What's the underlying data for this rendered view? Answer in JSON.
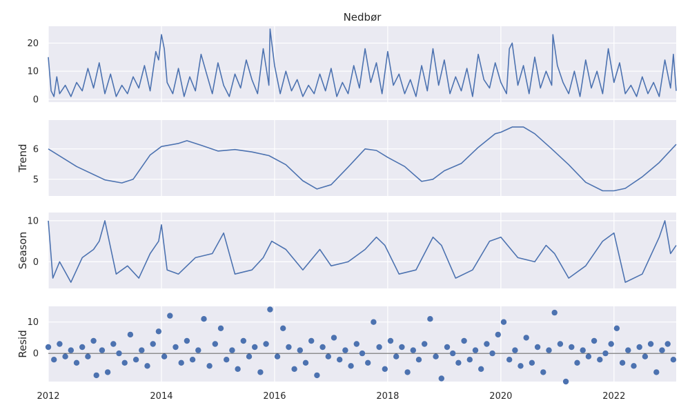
{
  "chart_data": {
    "type": "line",
    "title": "Nedbør",
    "x_tick_labels": [
      "2012",
      "2014",
      "2016",
      "2018",
      "2020",
      "2022"
    ],
    "x_range": [
      2012.0,
      2023.1
    ],
    "panels": [
      {
        "id": "observed",
        "ylabel": "",
        "style": "line",
        "ylim": [
          -1,
          26
        ],
        "yticks": [
          0,
          10,
          20
        ],
        "series": {
          "x": [
            2012.0,
            2012.05,
            2012.1,
            2012.15,
            2012.2,
            2012.3,
            2012.4,
            2012.5,
            2012.6,
            2012.7,
            2012.8,
            2012.9,
            2013.0,
            2013.1,
            2013.2,
            2013.3,
            2013.4,
            2013.5,
            2013.6,
            2013.7,
            2013.8,
            2013.9,
            2013.95,
            2014.0,
            2014.05,
            2014.1,
            2014.2,
            2014.3,
            2014.4,
            2014.5,
            2014.6,
            2014.7,
            2014.8,
            2014.9,
            2015.0,
            2015.1,
            2015.2,
            2015.3,
            2015.4,
            2015.5,
            2015.6,
            2015.7,
            2015.8,
            2015.9,
            2015.92,
            2016.0,
            2016.1,
            2016.2,
            2016.3,
            2016.4,
            2016.5,
            2016.6,
            2016.7,
            2016.8,
            2016.9,
            2017.0,
            2017.1,
            2017.2,
            2017.3,
            2017.4,
            2017.5,
            2017.6,
            2017.7,
            2017.8,
            2017.9,
            2018.0,
            2018.1,
            2018.2,
            2018.3,
            2018.4,
            2018.5,
            2018.6,
            2018.7,
            2018.8,
            2018.9,
            2019.0,
            2019.1,
            2019.2,
            2019.3,
            2019.4,
            2019.5,
            2019.6,
            2019.7,
            2019.8,
            2019.9,
            2020.0,
            2020.1,
            2020.15,
            2020.2,
            2020.3,
            2020.4,
            2020.5,
            2020.6,
            2020.7,
            2020.8,
            2020.9,
            2020.92,
            2021.0,
            2021.1,
            2021.2,
            2021.3,
            2021.4,
            2021.5,
            2021.6,
            2021.7,
            2021.8,
            2021.9,
            2022.0,
            2022.1,
            2022.2,
            2022.3,
            2022.4,
            2022.5,
            2022.6,
            2022.7,
            2022.8,
            2022.9,
            2023.0,
            2023.05,
            2023.1
          ],
          "y": [
            15,
            3,
            1,
            8,
            2,
            5,
            1,
            6,
            3,
            11,
            4,
            13,
            2,
            9,
            1,
            5,
            2,
            8,
            4,
            12,
            3,
            17,
            14,
            23,
            18,
            6,
            2,
            11,
            1,
            8,
            3,
            16,
            9,
            2,
            13,
            5,
            1,
            9,
            4,
            14,
            7,
            2,
            18,
            5,
            25,
            12,
            2,
            10,
            3,
            7,
            1,
            5,
            2,
            9,
            3,
            11,
            1,
            6,
            2,
            12,
            4,
            18,
            6,
            13,
            2,
            17,
            5,
            9,
            2,
            7,
            1,
            12,
            3,
            18,
            5,
            14,
            2,
            8,
            3,
            11,
            1,
            16,
            7,
            4,
            13,
            6,
            2,
            18,
            20,
            5,
            12,
            2,
            15,
            4,
            10,
            5,
            23,
            12,
            6,
            2,
            10,
            1,
            14,
            4,
            10,
            2,
            18,
            6,
            13,
            2,
            5,
            1,
            8,
            2,
            6,
            1,
            14,
            4,
            16,
            3
          ]
        }
      },
      {
        "id": "trend",
        "ylabel": "Trend",
        "style": "line",
        "ylim": [
          4.45,
          6.95
        ],
        "yticks": [
          5,
          6
        ],
        "series": {
          "x": [
            2012.0,
            2012.5,
            2013.0,
            2013.3,
            2013.5,
            2013.8,
            2014.0,
            2014.3,
            2014.45,
            2014.7,
            2015.0,
            2015.3,
            2015.6,
            2015.9,
            2016.2,
            2016.5,
            2016.75,
            2017.0,
            2017.3,
            2017.6,
            2017.8,
            2018.0,
            2018.3,
            2018.6,
            2018.8,
            2019.0,
            2019.3,
            2019.6,
            2019.9,
            2020.0,
            2020.2,
            2020.4,
            2020.6,
            2020.9,
            2021.2,
            2021.5,
            2021.8,
            2022.0,
            2022.2,
            2022.5,
            2022.8,
            2023.1
          ],
          "y": [
            6.0,
            5.42,
            4.98,
            4.88,
            5.0,
            5.8,
            6.08,
            6.18,
            6.27,
            6.12,
            5.93,
            5.98,
            5.9,
            5.78,
            5.48,
            4.95,
            4.68,
            4.82,
            5.4,
            6.0,
            5.95,
            5.72,
            5.42,
            4.93,
            5.0,
            5.28,
            5.52,
            6.05,
            6.5,
            6.55,
            6.72,
            6.72,
            6.5,
            6.0,
            5.48,
            4.9,
            4.62,
            4.62,
            4.7,
            5.08,
            5.55,
            6.15
          ]
        }
      },
      {
        "id": "season",
        "ylabel": "Season",
        "style": "line",
        "ylim": [
          -6.5,
          12
        ],
        "yticks": [
          0,
          10
        ],
        "series": {
          "x": [
            2012.0,
            2012.08,
            2012.2,
            2012.4,
            2012.6,
            2012.8,
            2012.9,
            2013.0,
            2013.2,
            2013.4,
            2013.6,
            2013.8,
            2013.95,
            2014.0,
            2014.1,
            2014.3,
            2014.6,
            2014.9,
            2015.1,
            2015.3,
            2015.6,
            2015.8,
            2015.95,
            2016.2,
            2016.5,
            2016.8,
            2017.0,
            2017.3,
            2017.6,
            2017.8,
            2017.95,
            2018.2,
            2018.5,
            2018.8,
            2018.95,
            2019.2,
            2019.5,
            2019.8,
            2020.0,
            2020.3,
            2020.6,
            2020.8,
            2020.95,
            2021.2,
            2021.5,
            2021.8,
            2022.0,
            2022.2,
            2022.5,
            2022.8,
            2022.9,
            2023.0,
            2023.1
          ],
          "y": [
            10,
            -4,
            0,
            -5,
            1,
            3,
            5,
            10,
            -3,
            -1,
            -4,
            2,
            5,
            9,
            -2,
            -3,
            1,
            2,
            7,
            -3,
            -2,
            1,
            5,
            3,
            -2,
            3,
            -1,
            0,
            3,
            6,
            4,
            -3,
            -2,
            6,
            4,
            -4,
            -2,
            5,
            6,
            1,
            0,
            4,
            2,
            -4,
            -1,
            5,
            7,
            -5,
            -3,
            6,
            10,
            2,
            4
          ]
        }
      },
      {
        "id": "resid",
        "ylabel": "Resid",
        "style": "scatter",
        "ylim": [
          -9,
          15
        ],
        "yticks": [
          0,
          10
        ],
        "zero_line": true,
        "series": {
          "x": [
            2012.0,
            2012.1,
            2012.2,
            2012.3,
            2012.4,
            2012.5,
            2012.6,
            2012.7,
            2012.8,
            2012.85,
            2012.95,
            2013.05,
            2013.15,
            2013.25,
            2013.35,
            2013.45,
            2013.55,
            2013.65,
            2013.75,
            2013.85,
            2013.95,
            2014.05,
            2014.15,
            2014.25,
            2014.35,
            2014.45,
            2014.55,
            2014.65,
            2014.75,
            2014.85,
            2014.95,
            2015.05,
            2015.15,
            2015.25,
            2015.35,
            2015.45,
            2015.55,
            2015.65,
            2015.75,
            2015.85,
            2015.92,
            2016.05,
            2016.15,
            2016.25,
            2016.35,
            2016.45,
            2016.55,
            2016.65,
            2016.75,
            2016.85,
            2016.95,
            2017.05,
            2017.15,
            2017.25,
            2017.35,
            2017.45,
            2017.55,
            2017.65,
            2017.75,
            2017.85,
            2017.95,
            2018.05,
            2018.15,
            2018.25,
            2018.35,
            2018.45,
            2018.55,
            2018.65,
            2018.75,
            2018.85,
            2018.95,
            2019.05,
            2019.15,
            2019.25,
            2019.35,
            2019.45,
            2019.55,
            2019.65,
            2019.75,
            2019.85,
            2019.95,
            2020.05,
            2020.15,
            2020.25,
            2020.35,
            2020.45,
            2020.55,
            2020.65,
            2020.75,
            2020.85,
            2020.95,
            2021.05,
            2021.15,
            2021.25,
            2021.35,
            2021.45,
            2021.55,
            2021.65,
            2021.75,
            2021.85,
            2021.95,
            2022.05,
            2022.15,
            2022.25,
            2022.35,
            2022.45,
            2022.55,
            2022.65,
            2022.75,
            2022.85,
            2022.95,
            2023.05
          ],
          "y": [
            2,
            -2,
            3,
            -1,
            1,
            -3,
            2,
            -1,
            4,
            -7,
            1,
            -6,
            3,
            0,
            -3,
            6,
            -2,
            1,
            -4,
            3,
            7,
            -1,
            12,
            2,
            -3,
            4,
            -2,
            1,
            11,
            -4,
            3,
            8,
            -2,
            1,
            -5,
            4,
            -1,
            2,
            -6,
            3,
            14,
            -1,
            8,
            2,
            -5,
            1,
            -3,
            4,
            -7,
            2,
            -1,
            5,
            -2,
            1,
            -4,
            3,
            0,
            -3,
            10,
            2,
            -5,
            4,
            -1,
            2,
            -6,
            1,
            -2,
            3,
            11,
            -1,
            -8,
            2,
            0,
            -3,
            4,
            -2,
            1,
            -5,
            3,
            0,
            6,
            10,
            -2,
            1,
            -4,
            5,
            -3,
            2,
            -6,
            1,
            13,
            3,
            -9,
            2,
            -3,
            1,
            -1,
            4,
            -2,
            0,
            3,
            8,
            -3,
            1,
            -4,
            2,
            -1,
            3,
            -6,
            1,
            3,
            -2
          ]
        }
      }
    ],
    "colors": {
      "line": "#4c72b0",
      "panel_bg": "#eaeaf2",
      "grid": "#ffffff",
      "text": "#262626",
      "zero_line": "#262626"
    }
  }
}
